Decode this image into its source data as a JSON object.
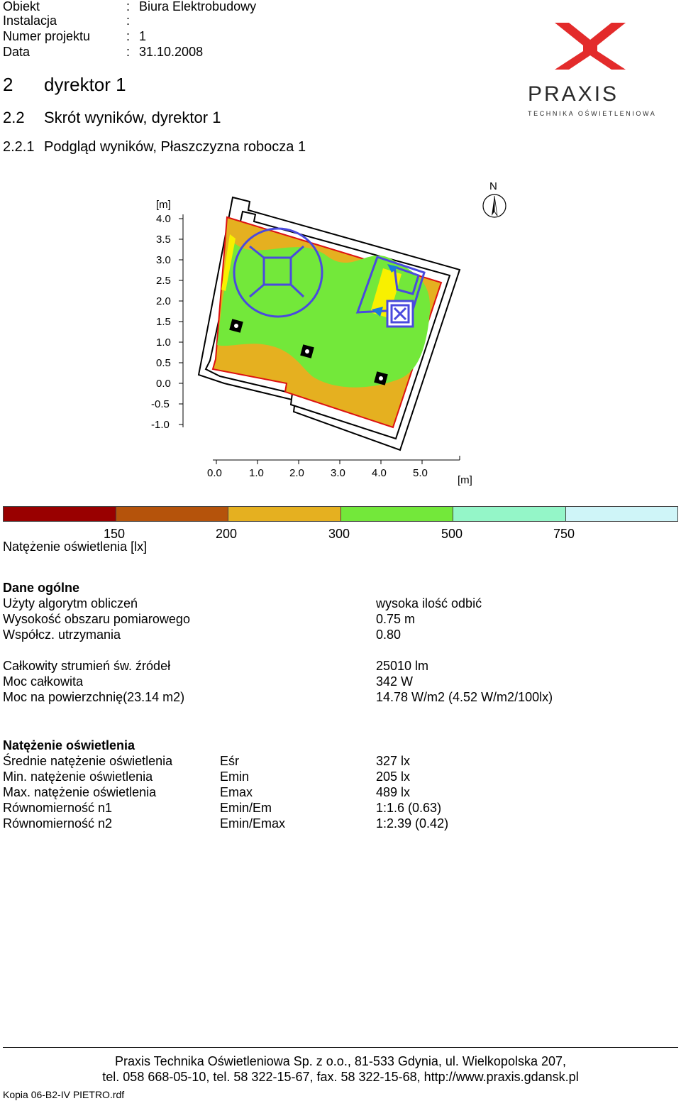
{
  "header": {
    "rows": [
      {
        "label": "Obiekt",
        "sep": ":",
        "value": "Biura Elektrobudowy"
      },
      {
        "label": "Instalacja",
        "sep": ":",
        "value": ""
      },
      {
        "label": "Numer projektu",
        "sep": ":",
        "value": "1"
      },
      {
        "label": "Data",
        "sep": ":",
        "value": "31.10.2008"
      }
    ]
  },
  "logo": {
    "brand": "PRAXIS",
    "tagline": "TECHNIKA OŚWIETLENIOWA",
    "mark_color": "#e32b2b"
  },
  "headings": {
    "h1_num": "2",
    "h1_text": "dyrektor 1",
    "h2_num": "2.2",
    "h2_text": "Skrót wyników, dyrektor 1",
    "h3_num": "2.2.1",
    "h3_text": "Podgląd wyników, Płaszczyzna robocza 1"
  },
  "plan": {
    "y_unit": "[m]",
    "y_ticks": [
      "4.0",
      "3.5",
      "3.0",
      "2.5",
      "2.0",
      "1.5",
      "1.0",
      "0.5",
      "0.0",
      "-0.5",
      "-1.0"
    ],
    "x_ticks": [
      "0.0",
      "1.0",
      "2.0",
      "3.0",
      "4.0",
      "5.0"
    ],
    "x_unit": "[m]",
    "north": "N"
  },
  "legend": {
    "colors": [
      "#990000",
      "#b5530b",
      "#e5b020",
      "#73e83a",
      "#94f6c8",
      "#cff5f8"
    ],
    "values": [
      "150",
      "200",
      "300",
      "500",
      "750"
    ],
    "title": "Natężenie oświetlenia [lx]"
  },
  "general": {
    "title": "Dane ogólne",
    "rows": [
      {
        "label": "Użyty algorytm obliczeń",
        "value": "wysoka ilość odbić"
      },
      {
        "label": "Wysokość obszaru pomiarowego",
        "value": "0.75 m"
      },
      {
        "label": "Współcz. utrzymania",
        "value": "0.80"
      }
    ],
    "rows2": [
      {
        "label": "Całkowity strumień św. źródeł",
        "value": "25010 lm"
      },
      {
        "label": "Moc całkowita",
        "value": "342 W"
      },
      {
        "label": "Moc na powierzchnię(23.14 m2)",
        "value": "14.78 W/m2 (4.52 W/m2/100lx)"
      }
    ]
  },
  "illum": {
    "title": "Natężenie oświetlenia",
    "rows": [
      {
        "label": "Średnie natężenie oświetlenia",
        "sym": "Eśr",
        "value": "327 lx"
      },
      {
        "label": "Min. natężenie oświetlenia",
        "sym": "Emin",
        "value": "205 lx"
      },
      {
        "label": "Max. natężenie oświetlenia",
        "sym": "Emax",
        "value": "489 lx"
      },
      {
        "label": "Równomierność n1",
        "sym": "Emin/Em",
        "value": "1:1.6 (0.63)"
      },
      {
        "label": "Równomierność n2",
        "sym": "Emin/Emax",
        "value": "1:2.39 (0.42)"
      }
    ]
  },
  "footer": {
    "line1": "Praxis Technika Oświetleniowa Sp. z o.o., 81-533 Gdynia, ul. Wielkopolska 207,",
    "line2": "tel. 058 668-05-10, tel. 58 322-15-67, fax. 58 322-15-68, http://www.praxis.gdansk.pl",
    "file": "Kopia 06-B2-IV PIETRO.rdf"
  }
}
